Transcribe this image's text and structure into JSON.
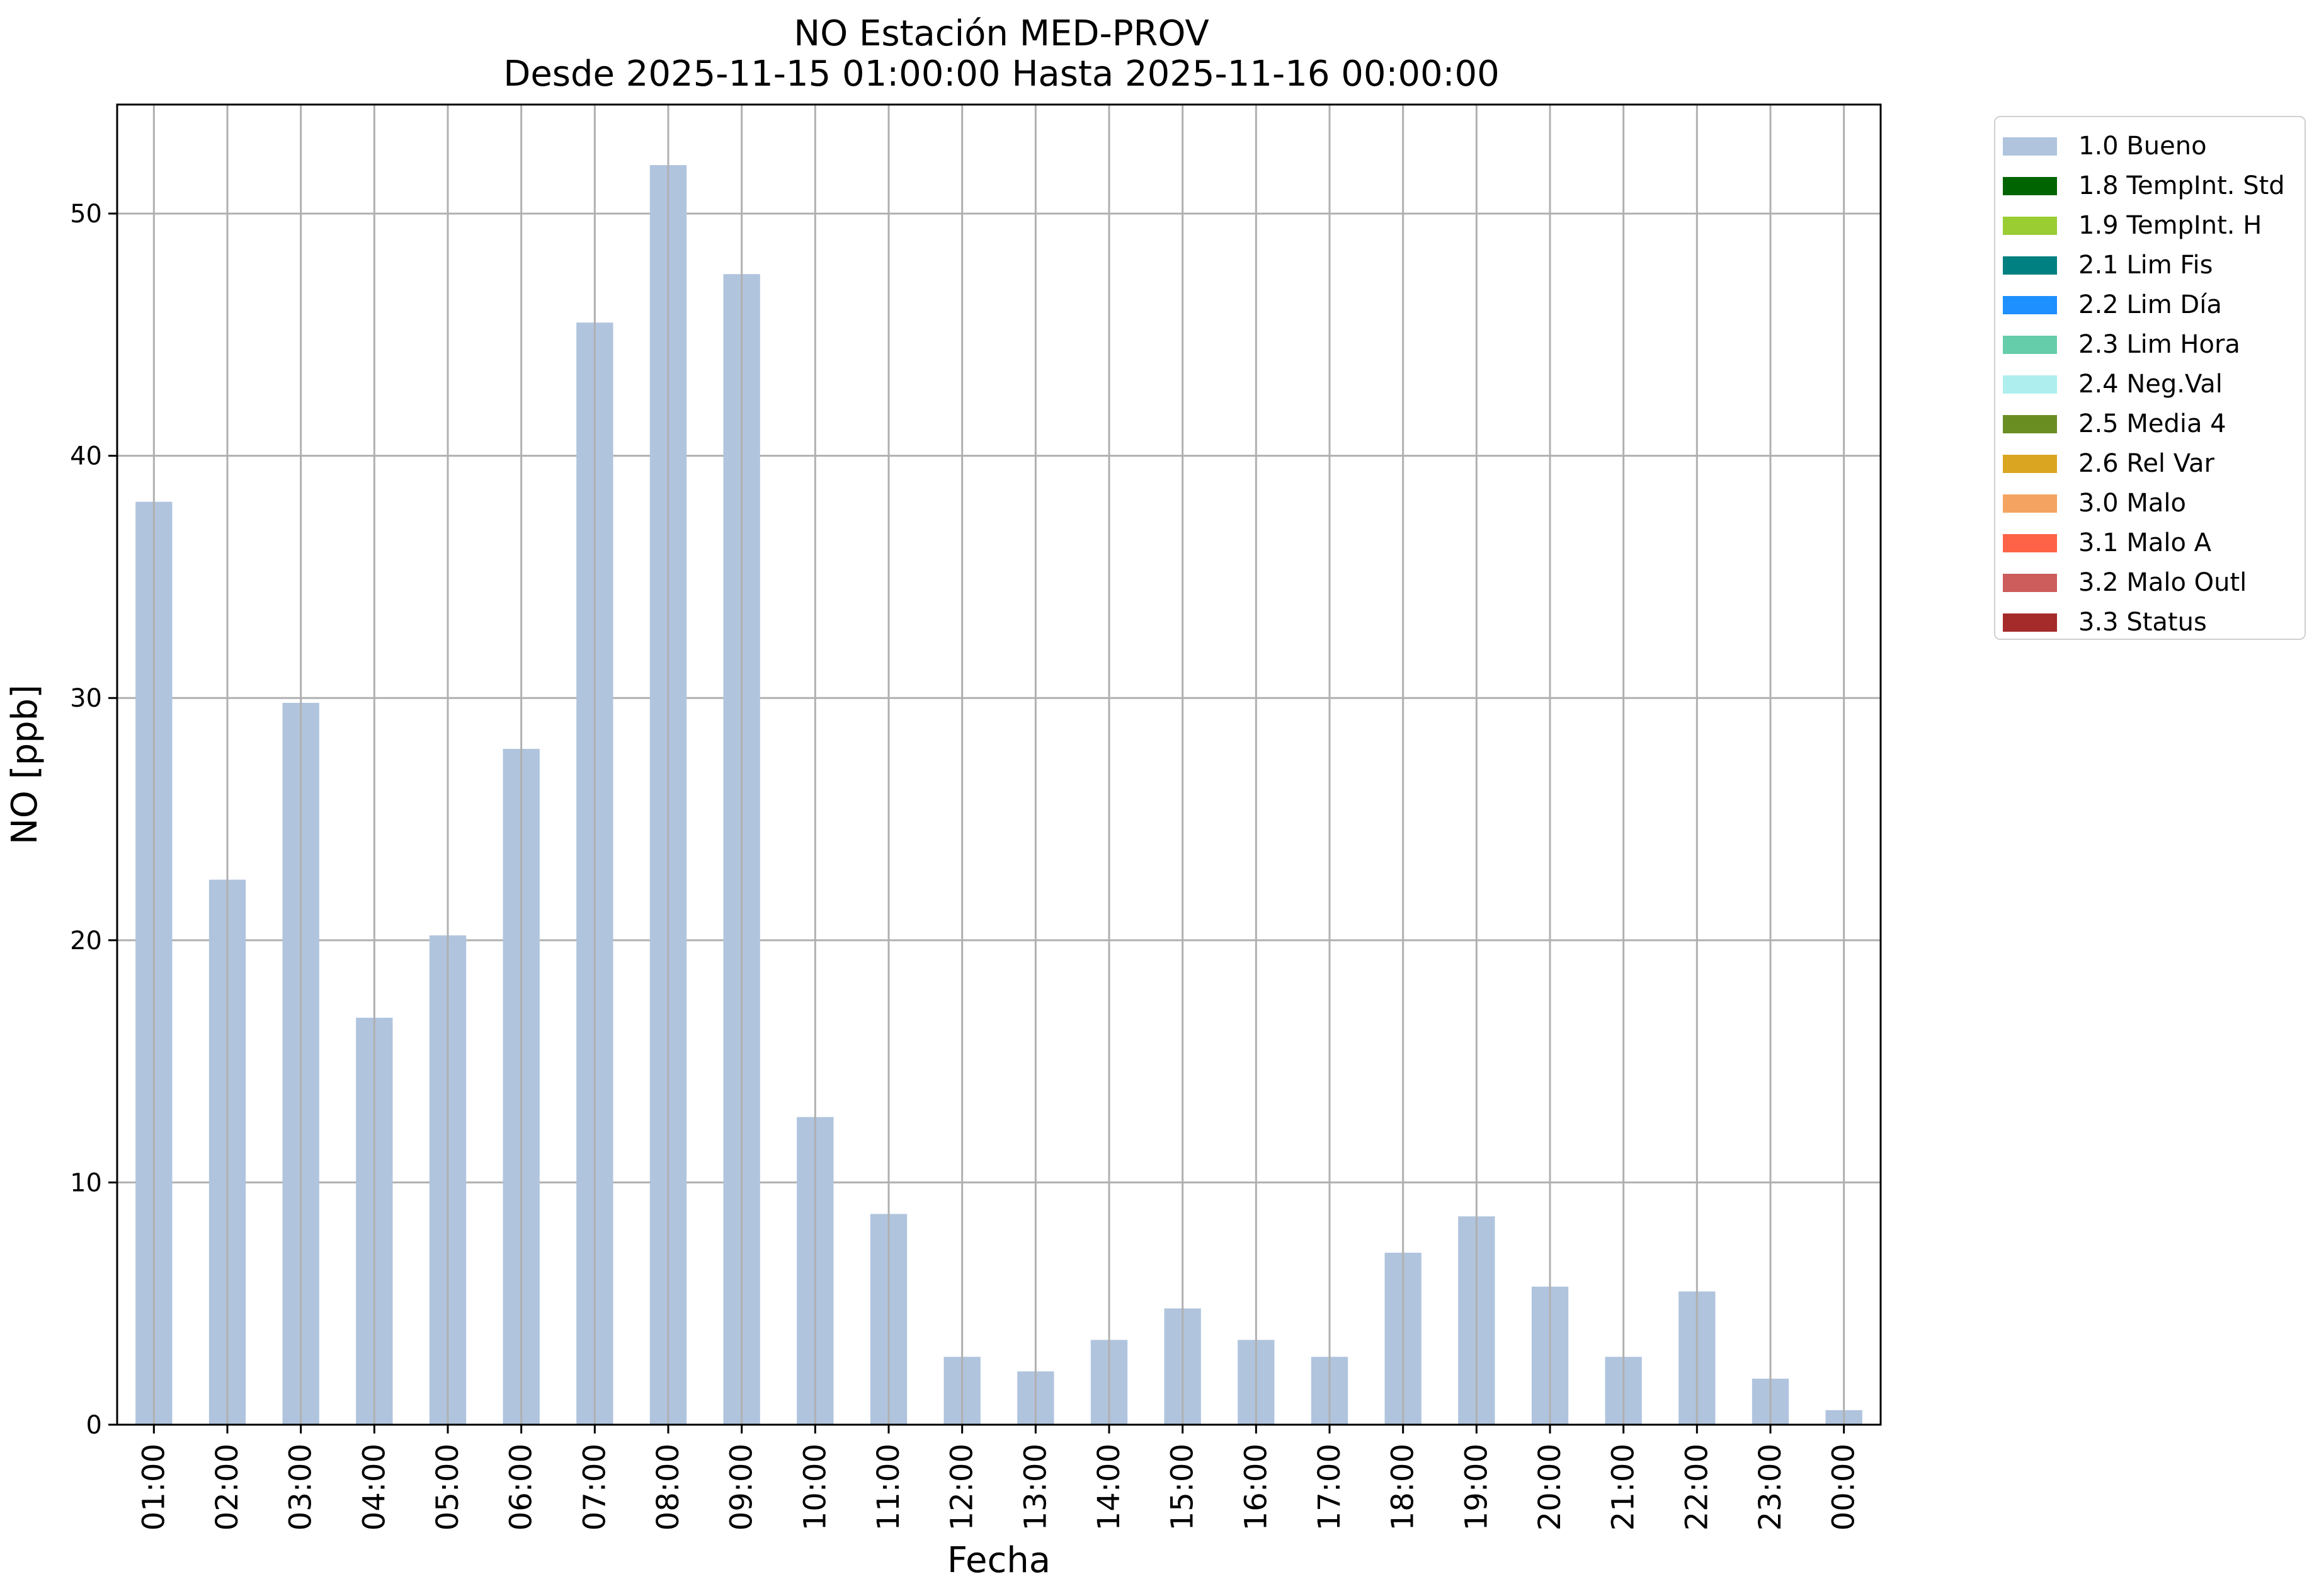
{
  "chart_data": {
    "type": "bar",
    "title": "NO Estación MED-PROV",
    "subtitle": "Desde 2025-11-15 01:00:00 Hasta 2025-11-16 00:00:00",
    "xlabel": "Fecha",
    "ylabel": "NO [ppb]",
    "ylim": [
      0,
      54.5
    ],
    "yticks": [
      0,
      10,
      20,
      30,
      40,
      50
    ],
    "grid": true,
    "legend_position": "outside top-right",
    "categories": [
      "01:00",
      "02:00",
      "03:00",
      "04:00",
      "05:00",
      "06:00",
      "07:00",
      "08:00",
      "09:00",
      "10:00",
      "11:00",
      "12:00",
      "13:00",
      "14:00",
      "15:00",
      "16:00",
      "17:00",
      "18:00",
      "19:00",
      "20:00",
      "21:00",
      "22:00",
      "23:00",
      "00:00"
    ],
    "series": [
      {
        "name": "1.0 Bueno",
        "color": "#b0c4de",
        "values": [
          38.1,
          22.5,
          29.8,
          16.8,
          20.2,
          27.9,
          45.5,
          52.0,
          47.5,
          12.7,
          8.7,
          2.8,
          2.2,
          3.5,
          4.8,
          3.5,
          2.8,
          7.1,
          8.6,
          5.7,
          2.8,
          5.5,
          1.9,
          0.6
        ]
      }
    ],
    "legend": [
      {
        "label": "1.0 Bueno",
        "color": "#b0c4de"
      },
      {
        "label": "1.8 TempInt. Std",
        "color": "#006400"
      },
      {
        "label": "1.9 TempInt. H",
        "color": "#9acd32"
      },
      {
        "label": "2.1 Lim Fis",
        "color": "#008080"
      },
      {
        "label": "2.2 Lim Día",
        "color": "#1e90ff"
      },
      {
        "label": "2.3 Lim Hora",
        "color": "#66cdaa"
      },
      {
        "label": "2.4 Neg.Val",
        "color": "#afeeee"
      },
      {
        "label": "2.5 Media 4",
        "color": "#6b8e23"
      },
      {
        "label": "2.6 Rel Var",
        "color": "#daa520"
      },
      {
        "label": "3.0 Malo",
        "color": "#f4a460"
      },
      {
        "label": "3.1 Malo A",
        "color": "#ff6347"
      },
      {
        "label": "3.2 Malo Outl",
        "color": "#cd5c5c"
      },
      {
        "label": "3.3 Status",
        "color": "#a52a2a"
      }
    ]
  }
}
